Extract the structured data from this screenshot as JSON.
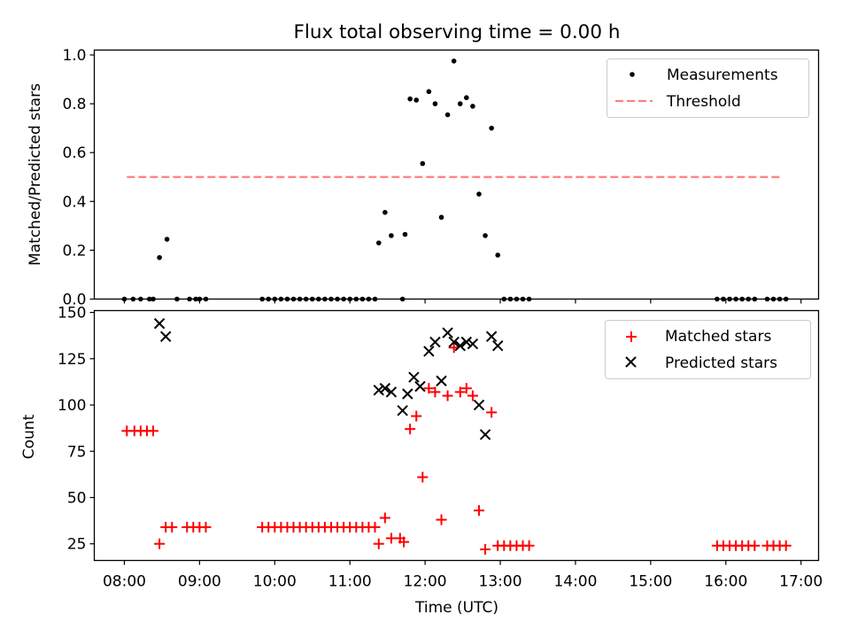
{
  "chart_data": [
    {
      "type": "scatter",
      "title": "Flux total observing time = 0.00 h",
      "ylabel": "Matched/Predicted stars",
      "xlabel": "",
      "xlim": [
        "07:36",
        "17:14"
      ],
      "ylim": [
        0,
        1.02
      ],
      "yticks": [
        0.0,
        0.2,
        0.4,
        0.6,
        0.8,
        1.0
      ],
      "ytick_labels": [
        "0.0",
        "0.2",
        "0.4",
        "0.6",
        "0.8",
        "1.0"
      ],
      "legend": {
        "location": "top-right"
      },
      "series": [
        {
          "name": "Measurements",
          "marker": "dot",
          "color": "#000000",
          "points": [
            [
              "08:00",
              0
            ],
            [
              "08:07",
              0
            ],
            [
              "08:13",
              0
            ],
            [
              "08:20",
              0
            ],
            [
              "08:23",
              0
            ],
            [
              "08:28",
              0.17
            ],
            [
              "08:34",
              0.245
            ],
            [
              "08:42",
              0
            ],
            [
              "08:52",
              0
            ],
            [
              "08:57",
              0
            ],
            [
              "09:00",
              0
            ],
            [
              "09:05",
              0
            ],
            [
              "09:50",
              0
            ],
            [
              "09:55",
              0
            ],
            [
              "10:00",
              0
            ],
            [
              "10:05",
              0
            ],
            [
              "10:10",
              0
            ],
            [
              "10:15",
              0
            ],
            [
              "10:20",
              0
            ],
            [
              "10:25",
              0
            ],
            [
              "10:30",
              0
            ],
            [
              "10:35",
              0
            ],
            [
              "10:40",
              0
            ],
            [
              "10:45",
              0
            ],
            [
              "10:50",
              0
            ],
            [
              "10:55",
              0
            ],
            [
              "11:00",
              0
            ],
            [
              "11:05",
              0
            ],
            [
              "11:10",
              0
            ],
            [
              "11:15",
              0
            ],
            [
              "11:20",
              0
            ],
            [
              "11:23",
              0.23
            ],
            [
              "11:28",
              0.355
            ],
            [
              "11:33",
              0.26
            ],
            [
              "11:42",
              0
            ],
            [
              "11:44",
              0.265
            ],
            [
              "11:48",
              0.82
            ],
            [
              "11:53",
              0.815
            ],
            [
              "11:58",
              0.555
            ],
            [
              "12:03",
              0.85
            ],
            [
              "12:08",
              0.8
            ],
            [
              "12:13",
              0.335
            ],
            [
              "12:18",
              0.755
            ],
            [
              "12:23",
              0.975
            ],
            [
              "12:28",
              0.8
            ],
            [
              "12:33",
              0.825
            ],
            [
              "12:38",
              0.79
            ],
            [
              "12:43",
              0.43
            ],
            [
              "12:48",
              0.26
            ],
            [
              "12:53",
              0.7
            ],
            [
              "12:58",
              0.18
            ],
            [
              "13:03",
              0
            ],
            [
              "13:08",
              0
            ],
            [
              "13:13",
              0
            ],
            [
              "13:18",
              0
            ],
            [
              "13:23",
              0
            ],
            [
              "15:53",
              0
            ],
            [
              "15:58",
              0
            ],
            [
              "16:03",
              0
            ],
            [
              "16:08",
              0
            ],
            [
              "16:13",
              0
            ],
            [
              "16:18",
              0
            ],
            [
              "16:23",
              0
            ],
            [
              "16:33",
              0
            ],
            [
              "16:38",
              0
            ],
            [
              "16:43",
              0
            ],
            [
              "16:48",
              0
            ]
          ]
        },
        {
          "name": "Threshold",
          "type": "line",
          "style": "dashed",
          "color": "#ff7f7f",
          "points": [
            [
              "08:02",
              0.5
            ],
            [
              "16:44",
              0.5
            ]
          ]
        }
      ]
    },
    {
      "type": "scatter",
      "title": "",
      "ylabel": "Count",
      "xlabel": "Time (UTC)",
      "xlim": [
        "07:36",
        "17:14"
      ],
      "ylim": [
        16,
        151
      ],
      "yticks": [
        25,
        50,
        75,
        100,
        125,
        150
      ],
      "ytick_labels": [
        "25",
        "50",
        "75",
        "100",
        "125",
        "150"
      ],
      "xticks": [
        "08:00",
        "09:00",
        "10:00",
        "11:00",
        "12:00",
        "13:00",
        "14:00",
        "15:00",
        "16:00",
        "17:00"
      ],
      "xtick_labels": [
        "08:00",
        "09:00",
        "10:00",
        "11:00",
        "12:00",
        "13:00",
        "14:00",
        "15:00",
        "16:00",
        "17:00"
      ],
      "legend": {
        "location": "top-right"
      },
      "series": [
        {
          "name": "Matched stars",
          "marker": "plus",
          "color": "#ff0000",
          "points": [
            [
              "08:02",
              86
            ],
            [
              "08:08",
              86
            ],
            [
              "08:13",
              86
            ],
            [
              "08:18",
              86
            ],
            [
              "08:23",
              86
            ],
            [
              "08:28",
              25
            ],
            [
              "08:33",
              34
            ],
            [
              "08:38",
              34
            ],
            [
              "08:50",
              34
            ],
            [
              "08:55",
              34
            ],
            [
              "09:00",
              34
            ],
            [
              "09:05",
              34
            ],
            [
              "09:50",
              34
            ],
            [
              "09:55",
              34
            ],
            [
              "10:00",
              34
            ],
            [
              "10:05",
              34
            ],
            [
              "10:10",
              34
            ],
            [
              "10:15",
              34
            ],
            [
              "10:20",
              34
            ],
            [
              "10:25",
              34
            ],
            [
              "10:30",
              34
            ],
            [
              "10:35",
              34
            ],
            [
              "10:40",
              34
            ],
            [
              "10:45",
              34
            ],
            [
              "10:50",
              34
            ],
            [
              "10:55",
              34
            ],
            [
              "11:00",
              34
            ],
            [
              "11:05",
              34
            ],
            [
              "11:10",
              34
            ],
            [
              "11:15",
              34
            ],
            [
              "11:20",
              34
            ],
            [
              "11:23",
              25
            ],
            [
              "11:28",
              39
            ],
            [
              "11:33",
              28
            ],
            [
              "11:40",
              28
            ],
            [
              "11:43",
              26
            ],
            [
              "11:48",
              87
            ],
            [
              "11:53",
              94
            ],
            [
              "11:58",
              61
            ],
            [
              "12:03",
              109
            ],
            [
              "12:08",
              107
            ],
            [
              "12:13",
              38
            ],
            [
              "12:18",
              105
            ],
            [
              "12:23",
              131
            ],
            [
              "12:28",
              107
            ],
            [
              "12:33",
              109
            ],
            [
              "12:38",
              105
            ],
            [
              "12:43",
              43
            ],
            [
              "12:48",
              22
            ],
            [
              "12:53",
              96
            ],
            [
              "12:58",
              24
            ],
            [
              "13:03",
              24
            ],
            [
              "13:08",
              24
            ],
            [
              "13:13",
              24
            ],
            [
              "13:18",
              24
            ],
            [
              "13:23",
              24
            ],
            [
              "15:53",
              24
            ],
            [
              "15:58",
              24
            ],
            [
              "16:03",
              24
            ],
            [
              "16:08",
              24
            ],
            [
              "16:13",
              24
            ],
            [
              "16:18",
              24
            ],
            [
              "16:23",
              24
            ],
            [
              "16:33",
              24
            ],
            [
              "16:38",
              24
            ],
            [
              "16:43",
              24
            ],
            [
              "16:48",
              24
            ]
          ]
        },
        {
          "name": "Predicted stars",
          "marker": "x",
          "color": "#000000",
          "points": [
            [
              "08:28",
              144
            ],
            [
              "08:33",
              137
            ],
            [
              "11:23",
              108
            ],
            [
              "11:28",
              109
            ],
            [
              "11:33",
              107
            ],
            [
              "11:42",
              97
            ],
            [
              "11:46",
              106
            ],
            [
              "11:51",
              115
            ],
            [
              "11:56",
              110
            ],
            [
              "12:03",
              129
            ],
            [
              "12:08",
              134
            ],
            [
              "12:13",
              113
            ],
            [
              "12:18",
              139
            ],
            [
              "12:23",
              134
            ],
            [
              "12:28",
              132
            ],
            [
              "12:33",
              134
            ],
            [
              "12:38",
              133
            ],
            [
              "12:43",
              100
            ],
            [
              "12:48",
              84
            ],
            [
              "12:53",
              137
            ],
            [
              "12:58",
              132
            ]
          ]
        }
      ]
    }
  ]
}
